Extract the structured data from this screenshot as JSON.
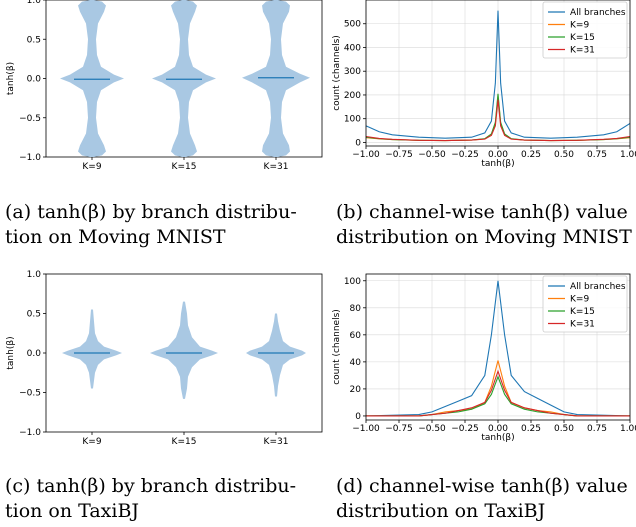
{
  "colors": {
    "violin_fill": "#a9c8e3",
    "median": "#1f77b4",
    "all_branches": "#1f77b4",
    "k9": "#ff7f0e",
    "k15": "#2ca02c",
    "k31": "#d62728",
    "grid": "#d9d9d9"
  },
  "captions": [
    {
      "lines": [
        "(a) tanh(β) by branch distribu-",
        "tion on Moving MNIST"
      ]
    },
    {
      "lines": [
        "(b) channel-wise tanh(β) value",
        "distribution on Moving MNIST"
      ]
    },
    {
      "lines": [
        "(c) tanh(β) by branch distribu-",
        "tion on TaxiBJ"
      ]
    },
    {
      "lines": [
        "(d) channel-wise tanh(β) value",
        "distribution on TaxiBJ"
      ]
    }
  ],
  "chart_data": [
    {
      "type": "violin",
      "ylabel": "tanh(β)",
      "ylim": [
        -1.0,
        1.0
      ],
      "yticks": [
        "-1.0",
        "-0.5",
        "0.0",
        "0.5",
        "1.0"
      ],
      "categories": [
        "K=9",
        "K=15",
        "K=31"
      ],
      "medians": [
        -0.01,
        -0.01,
        0.01
      ]
    },
    {
      "type": "line",
      "xlabel": "tanh(β)",
      "ylabel": "count (channels)",
      "xlim": [
        -1.0,
        1.0
      ],
      "ylim": [
        -15,
        600
      ],
      "yticks": [
        0,
        100,
        200,
        300,
        400,
        500
      ],
      "xticks": [
        "-1.00",
        "-0.75",
        "-0.50",
        "-0.25",
        "0.00",
        "0.25",
        "0.50",
        "0.75",
        "1.00"
      ],
      "legend_position": "top-right",
      "x": [
        -1.0,
        -0.9,
        -0.8,
        -0.6,
        -0.4,
        -0.2,
        -0.1,
        -0.05,
        -0.02,
        0.0,
        0.02,
        0.05,
        0.1,
        0.2,
        0.4,
        0.6,
        0.8,
        0.9,
        1.0
      ],
      "series": [
        {
          "name": "All branches",
          "values": [
            70,
            45,
            32,
            22,
            18,
            22,
            40,
            90,
            250,
            555,
            250,
            90,
            40,
            22,
            18,
            22,
            32,
            45,
            80
          ]
        },
        {
          "name": "K=9",
          "values": [
            20,
            15,
            12,
            9,
            8,
            10,
            15,
            35,
            80,
            195,
            80,
            35,
            15,
            10,
            8,
            9,
            12,
            15,
            20
          ]
        },
        {
          "name": "K=15",
          "values": [
            22,
            16,
            12,
            9,
            8,
            10,
            16,
            36,
            85,
            205,
            85,
            36,
            16,
            10,
            8,
            9,
            12,
            16,
            22
          ]
        },
        {
          "name": "K=31",
          "values": [
            25,
            17,
            13,
            9,
            8,
            10,
            14,
            30,
            70,
            180,
            70,
            30,
            14,
            10,
            8,
            9,
            13,
            17,
            25
          ]
        }
      ]
    },
    {
      "type": "violin",
      "ylabel": "tanh(β)",
      "ylim": [
        -1.0,
        1.0
      ],
      "yticks": [
        "-1.0",
        "-0.5",
        "0.0",
        "0.5",
        "1.0"
      ],
      "categories": [
        "K=9",
        "K=15",
        "K=31"
      ],
      "medians": [
        0.0,
        0.0,
        0.0
      ]
    },
    {
      "type": "line",
      "xlabel": "tanh(β)",
      "ylabel": "count (channels)",
      "xlim": [
        -1.0,
        1.0
      ],
      "ylim": [
        -3,
        105
      ],
      "yticks": [
        0,
        20,
        40,
        60,
        80,
        100
      ],
      "xticks": [
        "-1.00",
        "-0.75",
        "-0.50",
        "-0.25",
        "0.00",
        "0.25",
        "0.50",
        "0.75",
        "1.00"
      ],
      "legend_position": "top-right",
      "x": [
        -1.0,
        -0.6,
        -0.5,
        -0.4,
        -0.3,
        -0.2,
        -0.1,
        -0.05,
        0.0,
        0.05,
        0.1,
        0.2,
        0.3,
        0.4,
        0.5,
        0.6,
        1.0
      ],
      "series": [
        {
          "name": "All branches",
          "values": [
            0,
            1,
            3,
            7,
            11,
            15,
            30,
            60,
            100,
            60,
            30,
            18,
            13,
            8,
            3,
            1,
            0
          ]
        },
        {
          "name": "K=9",
          "values": [
            0,
            0,
            1,
            3,
            4,
            5,
            10,
            22,
            41,
            22,
            10,
            6,
            4,
            3,
            1,
            0,
            0
          ]
        },
        {
          "name": "K=15",
          "values": [
            0,
            0,
            1,
            2,
            3,
            5,
            9,
            16,
            29,
            16,
            9,
            5,
            3,
            2,
            1,
            0,
            0
          ]
        },
        {
          "name": "K=31",
          "values": [
            0,
            0,
            1,
            2,
            4,
            6,
            10,
            19,
            33,
            19,
            10,
            6,
            4,
            2,
            1,
            0,
            0
          ]
        }
      ]
    }
  ]
}
